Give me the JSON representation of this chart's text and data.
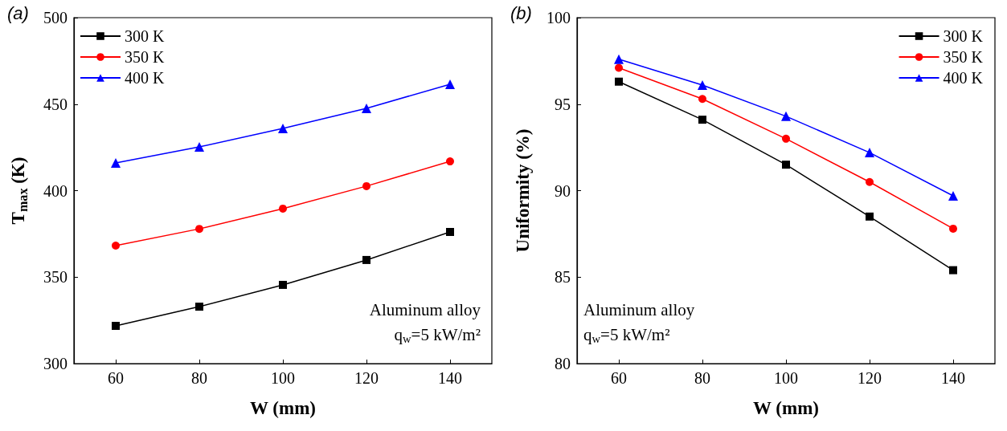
{
  "chart_data": [
    {
      "type": "line",
      "title": "(a)",
      "xlabel": "W (mm)",
      "ylabel": "T$_{max}$ (K)",
      "x": [
        60,
        80,
        100,
        120,
        140
      ],
      "xlim": [
        50,
        150
      ],
      "xticks": [
        60,
        80,
        100,
        120,
        140
      ],
      "ylim": [
        300,
        500
      ],
      "yticks": [
        300,
        350,
        400,
        450,
        500
      ],
      "grid": false,
      "legend": "top left",
      "series": [
        {
          "name": "300 K",
          "color": "#000000",
          "marker": "square",
          "values": [
            321.8,
            332.9,
            345.5,
            359.9,
            376.1
          ]
        },
        {
          "name": "350 K",
          "color": "#ff0000",
          "marker": "circle",
          "values": [
            368.2,
            377.9,
            389.6,
            402.6,
            416.9
          ]
        },
        {
          "name": "400 K",
          "color": "#0000ff",
          "marker": "triangle",
          "values": [
            416,
            425.3,
            436,
            447.6,
            461.5
          ]
        }
      ],
      "annotations": [
        "Aluminum alloy",
        "q$_{w}$=5 kW/m²"
      ]
    },
    {
      "type": "line",
      "title": "(b)",
      "xlabel": "W (mm)",
      "ylabel": "Uniformity (%)",
      "x": [
        60,
        80,
        100,
        120,
        140
      ],
      "xlim": [
        50,
        150
      ],
      "xticks": [
        60,
        80,
        100,
        120,
        140
      ],
      "ylim": [
        80,
        100
      ],
      "yticks": [
        80,
        85,
        90,
        95,
        100
      ],
      "grid": false,
      "legend": "top right",
      "series": [
        {
          "name": "300 K",
          "color": "#000000",
          "marker": "square",
          "values": [
            96.3,
            94.1,
            91.5,
            88.5,
            85.4
          ]
        },
        {
          "name": "350 K",
          "color": "#ff0000",
          "marker": "circle",
          "values": [
            97.1,
            95.3,
            93,
            90.5,
            87.8
          ]
        },
        {
          "name": "400 K",
          "color": "#0000ff",
          "marker": "triangle",
          "values": [
            97.6,
            96.1,
            94.3,
            92.2,
            89.7
          ]
        }
      ],
      "annotations": [
        "Aluminum alloy",
        "q$_{w}$=5 kW/m²"
      ]
    }
  ]
}
